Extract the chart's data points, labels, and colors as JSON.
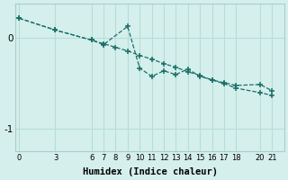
{
  "xlabel": "Humidex (Indice chaleur)",
  "background_color": "#d5efec",
  "grid_color": "#b8ddd9",
  "line_color": "#1a7068",
  "trend_x": [
    0,
    3,
    6,
    7,
    8,
    9,
    10,
    11,
    12,
    13,
    14,
    15,
    16,
    17,
    18,
    20,
    21
  ],
  "trend_y": [
    0.22,
    0.09,
    -0.02,
    -0.06,
    -0.1,
    -0.14,
    -0.19,
    -0.23,
    -0.28,
    -0.32,
    -0.37,
    -0.41,
    -0.46,
    -0.5,
    -0.55,
    -0.6,
    -0.63
  ],
  "zigzag_x": [
    0,
    3,
    6,
    7,
    9,
    10,
    11,
    12,
    13,
    14,
    15,
    16,
    17,
    18,
    20,
    21
  ],
  "zigzag_y": [
    0.22,
    0.09,
    -0.02,
    -0.07,
    0.13,
    -0.33,
    -0.42,
    -0.36,
    -0.4,
    -0.34,
    -0.42,
    -0.46,
    -0.49,
    -0.52,
    -0.51,
    -0.58
  ],
  "xticks": [
    0,
    3,
    6,
    7,
    8,
    9,
    10,
    11,
    12,
    13,
    14,
    15,
    16,
    17,
    18,
    20,
    21
  ],
  "yticks": [
    0,
    -1
  ],
  "xlim": [
    -0.3,
    22.0
  ],
  "ylim": [
    -1.25,
    0.38
  ]
}
